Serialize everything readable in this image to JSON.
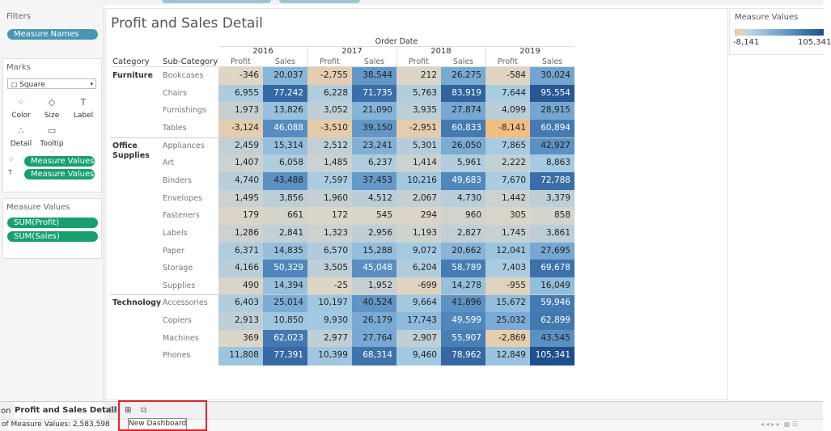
{
  "filters": {
    "title": "Filters",
    "pills": [
      "Measure Names"
    ]
  },
  "marks": {
    "title": "Marks",
    "mark_type": "Square",
    "buttons": [
      "Color",
      "Size",
      "Label",
      "Detail",
      "Tooltip"
    ],
    "pills": [
      "Measure Values",
      "Measure Values"
    ]
  },
  "measure_values_shelf": {
    "title": "Measure Values",
    "pills": [
      "SUM(Profit)",
      "SUM(Sales)"
    ]
  },
  "sheet": {
    "title": "Profit and Sales Detail",
    "column_header": "Order Date",
    "years": [
      "2016",
      "2017",
      "2018",
      "2019"
    ],
    "measures": [
      "Profit",
      "Sales"
    ],
    "row_headers": [
      "Category",
      "Sub-Category"
    ],
    "groups": [
      {
        "category": "Furniture",
        "rows": [
          {
            "sub_category": "Bookcases",
            "cells": [
              "-346",
              "20,037",
              "-2,755",
              "38,544",
              "212",
              "26,275",
              "-584",
              "30,024"
            ]
          },
          {
            "sub_category": "Chairs",
            "cells": [
              "6,955",
              "77,242",
              "6,228",
              "71,735",
              "5,763",
              "83,919",
              "7,644",
              "95,554"
            ]
          },
          {
            "sub_category": "Furnishings",
            "cells": [
              "1,973",
              "13,826",
              "3,052",
              "21,090",
              "3,935",
              "27,874",
              "4,099",
              "28,915"
            ]
          },
          {
            "sub_category": "Tables",
            "cells": [
              "-3,124",
              "46,088",
              "-3,510",
              "39,150",
              "-2,951",
              "60,833",
              "-8,141",
              "60,894"
            ]
          }
        ]
      },
      {
        "category": "Office Supplies",
        "rows": [
          {
            "sub_category": "Appliances",
            "cells": [
              "2,459",
              "15,314",
              "2,512",
              "23,241",
              "5,301",
              "26,050",
              "7,865",
              "42,927"
            ]
          },
          {
            "sub_category": "Art",
            "cells": [
              "1,407",
              "6,058",
              "1,485",
              "6,237",
              "1,414",
              "5,961",
              "2,222",
              "8,863"
            ]
          },
          {
            "sub_category": "Binders",
            "cells": [
              "4,740",
              "43,488",
              "7,597",
              "37,453",
              "10,216",
              "49,683",
              "7,670",
              "72,788"
            ]
          },
          {
            "sub_category": "Envelopes",
            "cells": [
              "1,495",
              "3,856",
              "1,960",
              "4,512",
              "2,067",
              "4,730",
              "1,442",
              "3,379"
            ]
          },
          {
            "sub_category": "Fasteners",
            "cells": [
              "179",
              "661",
              "172",
              "545",
              "294",
              "960",
              "305",
              "858"
            ]
          },
          {
            "sub_category": "Labels",
            "cells": [
              "1,286",
              "2,841",
              "1,323",
              "2,956",
              "1,193",
              "2,827",
              "1,745",
              "3,861"
            ]
          },
          {
            "sub_category": "Paper",
            "cells": [
              "6,371",
              "14,835",
              "6,570",
              "15,288",
              "9,072",
              "20,662",
              "12,041",
              "27,695"
            ]
          },
          {
            "sub_category": "Storage",
            "cells": [
              "4,166",
              "50,329",
              "3,505",
              "45,048",
              "6,204",
              "58,789",
              "7,403",
              "69,678"
            ]
          },
          {
            "sub_category": "Supplies",
            "cells": [
              "490",
              "14,394",
              "-25",
              "1,952",
              "-699",
              "14,278",
              "-955",
              "16,049"
            ]
          }
        ]
      },
      {
        "category": "Technology",
        "rows": [
          {
            "sub_category": "Accessories",
            "cells": [
              "6,403",
              "25,014",
              "10,197",
              "40,524",
              "9,664",
              "41,896",
              "15,672",
              "59,946"
            ]
          },
          {
            "sub_category": "Copiers",
            "cells": [
              "2,913",
              "10,850",
              "9,930",
              "26,179",
              "17,743",
              "49,599",
              "25,032",
              "62,899"
            ]
          },
          {
            "sub_category": "Machines",
            "cells": [
              "369",
              "62,023",
              "2,977",
              "27,764",
              "2,907",
              "55,907",
              "-2,869",
              "43,545"
            ]
          },
          {
            "sub_category": "Phones",
            "cells": [
              "11,808",
              "77,391",
              "10,399",
              "68,314",
              "9,460",
              "78,962",
              "12,849",
              "105,341"
            ]
          }
        ]
      }
    ]
  },
  "legend": {
    "title": "Measure Values",
    "min": "-8,141",
    "max": "105,341"
  },
  "tabs": {
    "partial": "on",
    "active": "Profit and Sales Detail",
    "tooltip": "New Dashboard"
  },
  "status": "of Measure Values: 2,583,598"
}
